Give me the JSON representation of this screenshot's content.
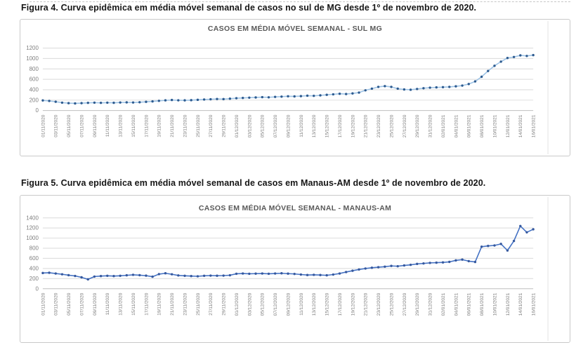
{
  "page": {
    "figure4_caption": "Figura 4. Curva epidêmica em média móvel semanal de casos no sul de MG desde 1º de novembro de 2020.",
    "figure5_caption": "Figura 5. Curva epidêmica em média móvel semanal de casos em Manaus-AM desde 1º de novembro de 2020."
  },
  "chart_data": [
    {
      "type": "line",
      "title": "CASOS EM MÉDIA MÓVEL SEMANAL - SUL MG",
      "xlabel": "",
      "ylabel": "",
      "ylim": [
        0,
        1200
      ],
      "ytick_step": 200,
      "grid": true,
      "legend": "none",
      "line_color": "#9DC3E6",
      "marker_color": "#2E5B8F",
      "points_per_label": 2,
      "x_labels": [
        "01/11/2020",
        "03/11/2020",
        "05/11/2020",
        "07/11/2020",
        "09/11/2020",
        "11/11/2020",
        "13/11/2020",
        "15/11/2020",
        "17/11/2020",
        "19/11/2020",
        "21/11/2020",
        "23/11/2020",
        "25/11/2020",
        "27/11/2020",
        "29/11/2020",
        "01/12/2020",
        "03/12/2020",
        "05/12/2020",
        "07/12/2020",
        "09/12/2020",
        "11/12/2020",
        "13/12/2020",
        "15/12/2020",
        "17/12/2020",
        "19/12/2020",
        "21/12/2020",
        "23/12/2020",
        "25/12/2020",
        "27/12/2020",
        "29/12/2020",
        "31/12/2020",
        "02/01/2021",
        "04/01/2021",
        "06/01/2021",
        "08/01/2021",
        "10/01/2021",
        "12/01/2021",
        "14/01/2021",
        "16/01/2021"
      ],
      "values": [
        195,
        185,
        170,
        152,
        142,
        138,
        142,
        148,
        152,
        148,
        152,
        150,
        155,
        158,
        155,
        160,
        168,
        176,
        186,
        196,
        202,
        198,
        196,
        200,
        206,
        212,
        218,
        222,
        220,
        228,
        238,
        242,
        248,
        252,
        258,
        255,
        262,
        268,
        275,
        272,
        278,
        285,
        282,
        292,
        302,
        312,
        322,
        318,
        330,
        345,
        390,
        420,
        455,
        470,
        455,
        420,
        405,
        400,
        415,
        430,
        440,
        445,
        450,
        455,
        465,
        480,
        510,
        560,
        650,
        760,
        860,
        940,
        1010,
        1030,
        1060,
        1050,
        1065
      ]
    },
    {
      "type": "line",
      "title": "CASOS EM MÉDIA MÓVEL SEMANAL - MANAUS-AM",
      "xlabel": "",
      "ylabel": "",
      "ylim": [
        0,
        1400
      ],
      "ytick_step": 200,
      "grid": true,
      "legend": "none",
      "line_color": "#4472C4",
      "marker_color": "#35589E",
      "points_per_label": 2,
      "x_labels": [
        "01/11/2020",
        "03/11/2020",
        "05/11/2020",
        "07/11/2020",
        "09/11/2020",
        "11/11/2020",
        "13/11/2020",
        "15/11/2020",
        "17/11/2020",
        "19/11/2020",
        "21/11/2020",
        "23/11/2020",
        "25/11/2020",
        "27/11/2020",
        "29/11/2020",
        "01/12/2020",
        "03/12/2020",
        "05/12/2020",
        "07/12/2020",
        "09/12/2020",
        "11/12/2020",
        "13/12/2020",
        "15/12/2020",
        "17/12/2020",
        "19/12/2020",
        "21/12/2020",
        "23/12/2020",
        "25/12/2020",
        "27/12/2020",
        "29/12/2020",
        "31/12/2020",
        "02/01/2021",
        "04/01/2021",
        "06/01/2021",
        "08/01/2021",
        "10/01/2021",
        "12/01/2021",
        "14/01/2021",
        "16/01/2021"
      ],
      "values": [
        310,
        315,
        300,
        285,
        268,
        252,
        225,
        185,
        240,
        250,
        255,
        250,
        255,
        265,
        275,
        268,
        258,
        238,
        288,
        305,
        285,
        262,
        255,
        250,
        246,
        255,
        260,
        256,
        260,
        266,
        295,
        300,
        295,
        298,
        300,
        295,
        300,
        305,
        298,
        292,
        280,
        270,
        275,
        270,
        265,
        280,
        300,
        330,
        355,
        380,
        400,
        415,
        425,
        435,
        450,
        445,
        460,
        472,
        490,
        500,
        510,
        515,
        520,
        530,
        560,
        575,
        545,
        528,
        830,
        845,
        855,
        885,
        755,
        945,
        1240,
        1115,
        1175
      ]
    }
  ],
  "style": {
    "grid_color": "#d9d9d9",
    "axis_color": "#bfbfbf",
    "tick_label_color": "#7f7f7f",
    "frame_edge_color": "#e3e3e3"
  }
}
